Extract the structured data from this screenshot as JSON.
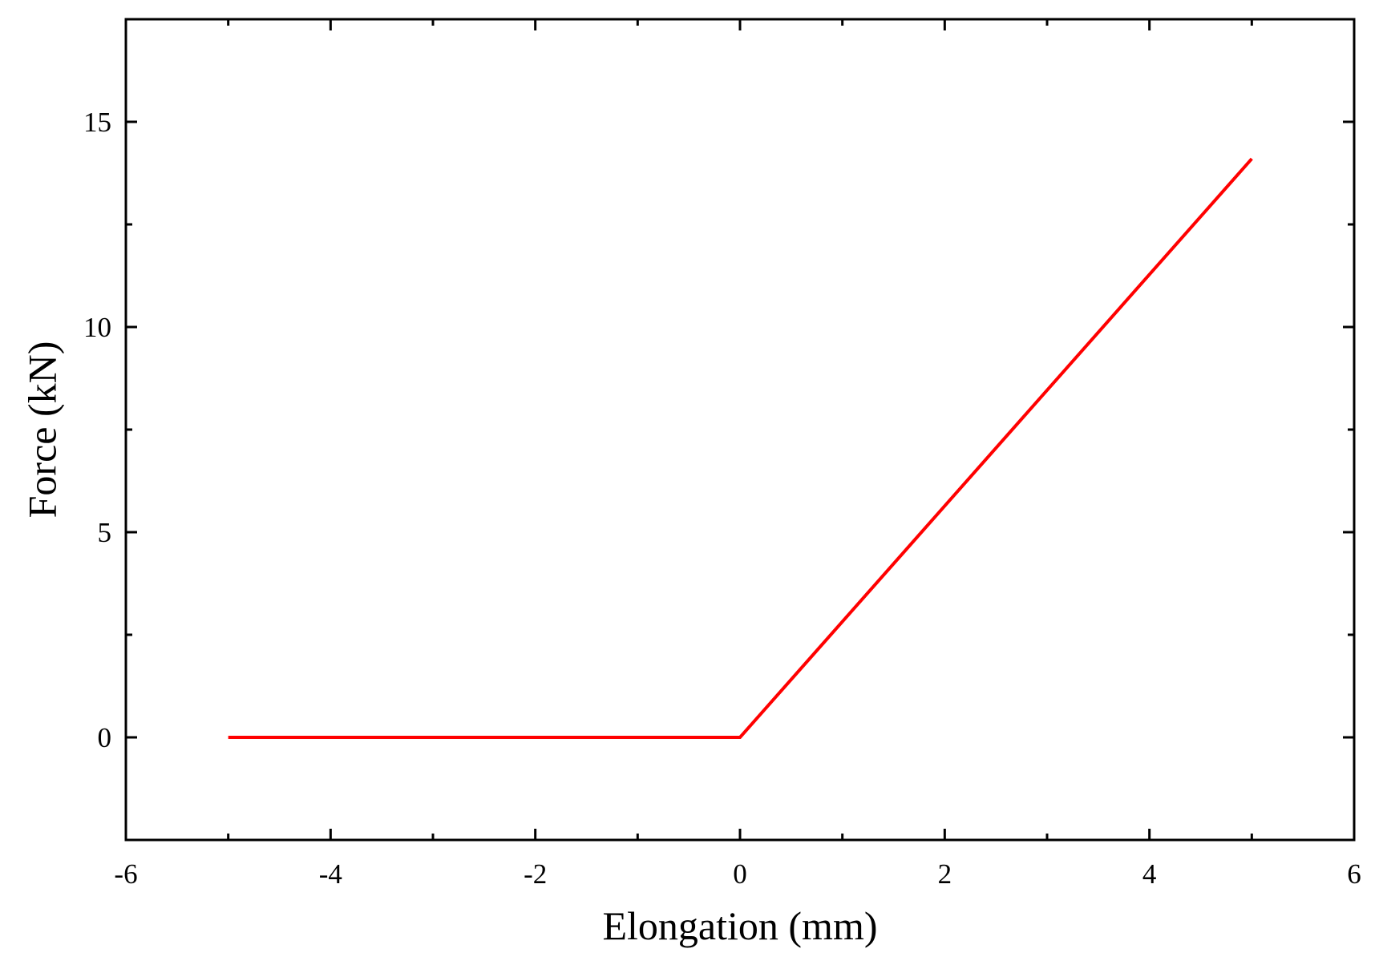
{
  "chart_data": {
    "type": "line",
    "x_label": "Elongation (mm)",
    "y_label": "Force (kN)",
    "x": [
      -5,
      0,
      5
    ],
    "series": [
      {
        "color": "#ff0000",
        "values": [
          0,
          0,
          14.1
        ]
      }
    ],
    "xlim": [
      -6,
      6
    ],
    "xticks": [
      -6,
      -4,
      -2,
      0,
      2,
      4,
      6
    ],
    "ylim": [
      -2.5,
      17.5
    ],
    "yticks": [
      0,
      5,
      10,
      15
    ]
  }
}
